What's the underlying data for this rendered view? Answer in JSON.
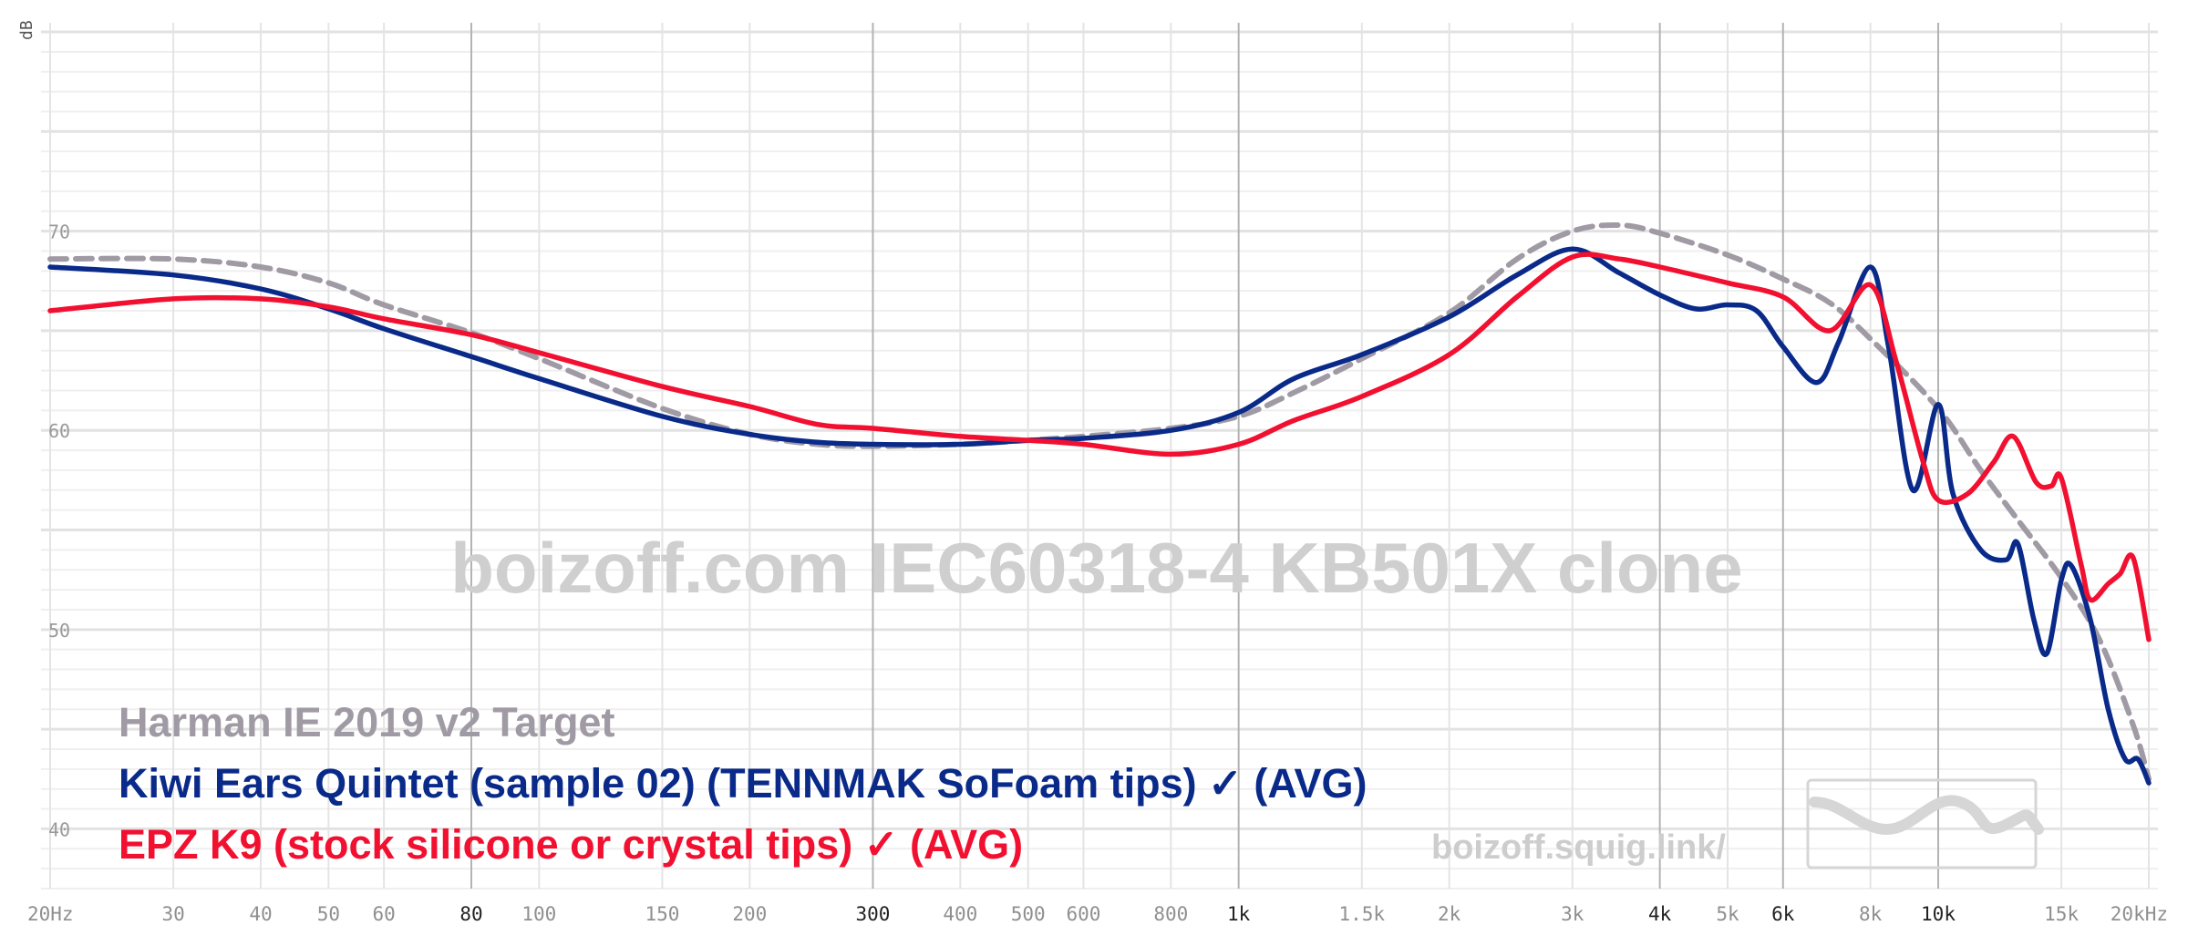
{
  "chart_data": {
    "type": "line",
    "ylabel": "dB",
    "xscale": "log",
    "xlim": [
      20,
      20000
    ],
    "ylim": [
      37,
      80
    ],
    "grid": true,
    "legend_position": "bottom-left",
    "watermark": "boizoff.com IEC60318-4 KB501X clone",
    "watermark_url": "boizoff.squig.link/",
    "x_ticks": [
      {
        "v": 20,
        "label": "20Hz",
        "major": false
      },
      {
        "v": 30,
        "label": "30",
        "major": false
      },
      {
        "v": 40,
        "label": "40",
        "major": false
      },
      {
        "v": 50,
        "label": "50",
        "major": false
      },
      {
        "v": 60,
        "label": "60",
        "major": false
      },
      {
        "v": 80,
        "label": "80",
        "major": true
      },
      {
        "v": 100,
        "label": "100",
        "major": false
      },
      {
        "v": 150,
        "label": "150",
        "major": false
      },
      {
        "v": 200,
        "label": "200",
        "major": false
      },
      {
        "v": 300,
        "label": "300",
        "major": true
      },
      {
        "v": 400,
        "label": "400",
        "major": false
      },
      {
        "v": 500,
        "label": "500",
        "major": false
      },
      {
        "v": 600,
        "label": "600",
        "major": false
      },
      {
        "v": 800,
        "label": "800",
        "major": false
      },
      {
        "v": 1000,
        "label": "1k",
        "major": true
      },
      {
        "v": 1500,
        "label": "1.5k",
        "major": false
      },
      {
        "v": 2000,
        "label": "2k",
        "major": false
      },
      {
        "v": 3000,
        "label": "3k",
        "major": false
      },
      {
        "v": 4000,
        "label": "4k",
        "major": true
      },
      {
        "v": 5000,
        "label": "5k",
        "major": false
      },
      {
        "v": 6000,
        "label": "6k",
        "major": true
      },
      {
        "v": 8000,
        "label": "8k",
        "major": false
      },
      {
        "v": 10000,
        "label": "10k",
        "major": true
      },
      {
        "v": 15000,
        "label": "15k",
        "major": false
      },
      {
        "v": 20000,
        "label": "20kHz",
        "major": false
      }
    ],
    "y_ticks": [
      {
        "v": 40,
        "label": "40"
      },
      {
        "v": 50,
        "label": "50"
      },
      {
        "v": 60,
        "label": "60"
      },
      {
        "v": 70,
        "label": "70"
      }
    ],
    "series": [
      {
        "name": "Harman IE 2019 v2 Target",
        "color": "#a09aa4",
        "style": "dashed",
        "points": [
          [
            20,
            68.6
          ],
          [
            30,
            68.6
          ],
          [
            40,
            68.2
          ],
          [
            50,
            67.4
          ],
          [
            60,
            66.3
          ],
          [
            80,
            64.9
          ],
          [
            100,
            63.6
          ],
          [
            150,
            61.1
          ],
          [
            200,
            59.8
          ],
          [
            250,
            59.3
          ],
          [
            300,
            59.2
          ],
          [
            400,
            59.3
          ],
          [
            500,
            59.5
          ],
          [
            600,
            59.7
          ],
          [
            800,
            60.1
          ],
          [
            1000,
            60.7
          ],
          [
            1200,
            61.9
          ],
          [
            1500,
            63.6
          ],
          [
            2000,
            65.9
          ],
          [
            2500,
            68.6
          ],
          [
            3000,
            70.0
          ],
          [
            3500,
            70.3
          ],
          [
            4000,
            69.9
          ],
          [
            5000,
            68.8
          ],
          [
            6000,
            67.6
          ],
          [
            7000,
            66.4
          ],
          [
            8000,
            64.6
          ],
          [
            10000,
            61.1
          ],
          [
            11500,
            58.0
          ],
          [
            13000,
            55.5
          ],
          [
            15000,
            52.6
          ],
          [
            17000,
            49.5
          ],
          [
            19000,
            45.2
          ],
          [
            20000,
            42.5
          ]
        ]
      },
      {
        "name": "Kiwi Ears Quintet (sample 02) (TENNMAK SoFoam tips) ✓ (AVG)",
        "color": "#0a2a8a",
        "style": "solid",
        "points": [
          [
            20,
            68.2
          ],
          [
            30,
            67.8
          ],
          [
            40,
            67.1
          ],
          [
            50,
            66.1
          ],
          [
            60,
            65.1
          ],
          [
            80,
            63.7
          ],
          [
            100,
            62.6
          ],
          [
            150,
            60.7
          ],
          [
            200,
            59.8
          ],
          [
            250,
            59.4
          ],
          [
            300,
            59.3
          ],
          [
            400,
            59.3
          ],
          [
            500,
            59.5
          ],
          [
            600,
            59.6
          ],
          [
            800,
            60.0
          ],
          [
            1000,
            60.9
          ],
          [
            1200,
            62.6
          ],
          [
            1500,
            63.8
          ],
          [
            2000,
            65.7
          ],
          [
            2500,
            67.8
          ],
          [
            3000,
            69.1
          ],
          [
            3500,
            67.9
          ],
          [
            4000,
            66.8
          ],
          [
            4500,
            66.1
          ],
          [
            5000,
            66.3
          ],
          [
            5500,
            66.0
          ],
          [
            6000,
            64.2
          ],
          [
            6700,
            62.4
          ],
          [
            7200,
            64.4
          ],
          [
            8000,
            68.2
          ],
          [
            8500,
            64.1
          ],
          [
            9200,
            57.0
          ],
          [
            10000,
            61.3
          ],
          [
            10500,
            56.8
          ],
          [
            11500,
            54.0
          ],
          [
            12500,
            53.5
          ],
          [
            13000,
            54.3
          ],
          [
            13700,
            50.5
          ],
          [
            14300,
            48.8
          ],
          [
            15000,
            52.5
          ],
          [
            15500,
            53.2
          ],
          [
            16500,
            50.5
          ],
          [
            17500,
            46.0
          ],
          [
            18500,
            43.5
          ],
          [
            19300,
            43.5
          ],
          [
            20000,
            42.3
          ]
        ]
      },
      {
        "name": "EPZ K9 (stock silicone or crystal tips) ✓ (AVG)",
        "color": "#f21030",
        "style": "solid",
        "points": [
          [
            20,
            66.0
          ],
          [
            30,
            66.6
          ],
          [
            40,
            66.6
          ],
          [
            50,
            66.2
          ],
          [
            60,
            65.6
          ],
          [
            80,
            64.8
          ],
          [
            100,
            63.9
          ],
          [
            150,
            62.2
          ],
          [
            200,
            61.2
          ],
          [
            250,
            60.3
          ],
          [
            300,
            60.1
          ],
          [
            400,
            59.7
          ],
          [
            500,
            59.5
          ],
          [
            600,
            59.3
          ],
          [
            800,
            58.8
          ],
          [
            1000,
            59.3
          ],
          [
            1200,
            60.5
          ],
          [
            1500,
            61.7
          ],
          [
            2000,
            63.8
          ],
          [
            2500,
            66.7
          ],
          [
            3000,
            68.7
          ],
          [
            3500,
            68.6
          ],
          [
            4000,
            68.2
          ],
          [
            5000,
            67.4
          ],
          [
            6000,
            66.7
          ],
          [
            7000,
            65.0
          ],
          [
            8000,
            67.3
          ],
          [
            8700,
            63.5
          ],
          [
            9500,
            58.5
          ],
          [
            10000,
            56.5
          ],
          [
            11000,
            56.8
          ],
          [
            12000,
            58.4
          ],
          [
            12800,
            59.7
          ],
          [
            13800,
            57.4
          ],
          [
            14500,
            57.2
          ],
          [
            15000,
            57.6
          ],
          [
            16000,
            53.3
          ],
          [
            16500,
            51.5
          ],
          [
            17500,
            52.3
          ],
          [
            18200,
            52.8
          ],
          [
            19000,
            53.6
          ],
          [
            20000,
            49.5
          ]
        ]
      }
    ]
  }
}
